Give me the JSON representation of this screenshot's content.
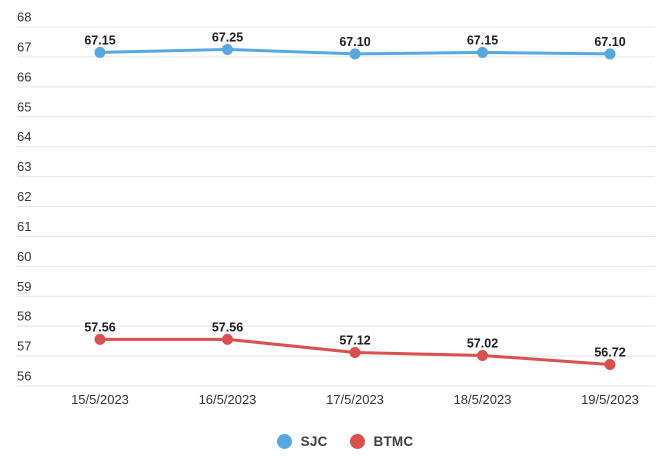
{
  "chart_data": {
    "type": "line",
    "title": "",
    "xlabel": "",
    "ylabel": "",
    "x": [
      "15/5/2023",
      "16/5/2023",
      "17/5/2023",
      "18/5/2023",
      "19/5/2023"
    ],
    "series": [
      {
        "name": "SJC",
        "color": "#57a8e0",
        "values": [
          67.15,
          67.25,
          67.1,
          67.15,
          67.1
        ],
        "point_labels": [
          "67.15",
          "67.25",
          "67.10",
          "67.15",
          "67.10"
        ]
      },
      {
        "name": "BTMC",
        "color": "#d9504e",
        "values": [
          57.56,
          57.56,
          57.12,
          57.02,
          56.72
        ],
        "point_labels": [
          "57.56",
          "57.56",
          "57.12",
          "57.02",
          "56.72"
        ]
      }
    ],
    "ylim": [
      56,
      68
    ],
    "ytick_step": 1,
    "ytick_labels": [
      "56",
      "57",
      "58",
      "59",
      "60",
      "61",
      "62",
      "63",
      "64",
      "65",
      "66",
      "67",
      "68"
    ],
    "grid": true,
    "legend_position": "bottom"
  },
  "style_tokens": {
    "gridline_color": "#e3e3e3",
    "axis_label_color": "#333333",
    "value_label_color": "#1d1d1d",
    "background_color": "#ffffff"
  }
}
